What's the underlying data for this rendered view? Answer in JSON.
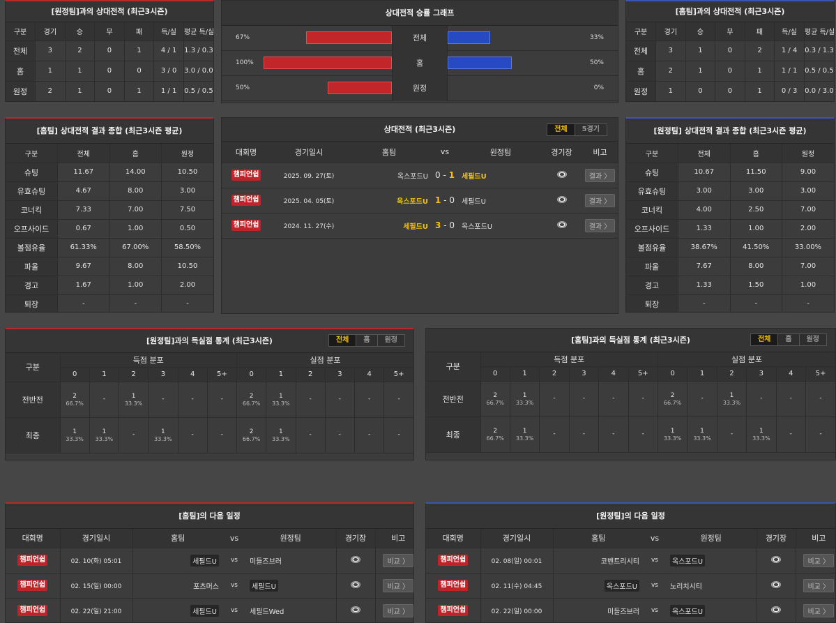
{
  "h2h_cols": [
    "구분",
    "경기",
    "승",
    "무",
    "패",
    "득/실",
    "평균 득/실"
  ],
  "h2h_away": {
    "title": "[원정팀]과의 상대전적 (최근3시즌)",
    "rows": [
      [
        "전체",
        "3",
        "2",
        "0",
        "1",
        "4 / 1",
        "1.3 / 0.3"
      ],
      [
        "홈",
        "1",
        "1",
        "0",
        "0",
        "3 / 0",
        "3.0 / 0.0"
      ],
      [
        "원정",
        "2",
        "1",
        "0",
        "1",
        "1 / 1",
        "0.5 / 0.5"
      ]
    ]
  },
  "h2h_home": {
    "title": "[홈팀]과의 상대전적 (최근3시즌)",
    "rows": [
      [
        "전체",
        "3",
        "1",
        "0",
        "2",
        "1 / 4",
        "0.3 / 1.3"
      ],
      [
        "홈",
        "2",
        "1",
        "0",
        "1",
        "1 / 1",
        "0.5 / 0.5"
      ],
      [
        "원정",
        "1",
        "0",
        "0",
        "1",
        "0 / 3",
        "0.0 / 3.0"
      ]
    ]
  },
  "graph": {
    "title": "상대전적 승률 그래프",
    "rows": [
      {
        "label": "전체",
        "left_text": "67%",
        "left": 67,
        "right_text": "33%",
        "right": 33
      },
      {
        "label": "홈",
        "left_text": "100%",
        "left": 100,
        "right_text": "50%",
        "right": 50
      },
      {
        "label": "원정",
        "left_text": "50%",
        "left": 50,
        "right_text": "0%",
        "right": 0
      }
    ],
    "red": "#c0262a",
    "blue": "#2849c4"
  },
  "summary_cols": [
    "구분",
    "전체",
    "홈",
    "원정"
  ],
  "summary_home": {
    "title": "[홈팀] 상대전적 결과 종합 (최근3시즌 평균)",
    "rows": [
      [
        "슈팅",
        "11.67",
        "14.00",
        "10.50"
      ],
      [
        "유효슈팅",
        "4.67",
        "8.00",
        "3.00"
      ],
      [
        "코너킥",
        "7.33",
        "7.00",
        "7.50"
      ],
      [
        "오프사이드",
        "0.67",
        "1.00",
        "0.50"
      ],
      [
        "볼점유율",
        "61.33%",
        "67.00%",
        "58.50%"
      ],
      [
        "파울",
        "9.67",
        "8.00",
        "10.50"
      ],
      [
        "경고",
        "1.67",
        "1.00",
        "2.00"
      ],
      [
        "퇴장",
        "-",
        "-",
        "-"
      ]
    ]
  },
  "summary_away": {
    "title": "[원정팀] 상대전적 결과 종합 (최근3시즌 평균)",
    "rows": [
      [
        "슈팅",
        "10.67",
        "11.50",
        "9.00"
      ],
      [
        "유효슈팅",
        "3.00",
        "3.00",
        "3.00"
      ],
      [
        "코너킥",
        "4.00",
        "2.50",
        "7.00"
      ],
      [
        "오프사이드",
        "1.33",
        "1.00",
        "2.00"
      ],
      [
        "볼점유율",
        "38.67%",
        "41.50%",
        "33.00%"
      ],
      [
        "파울",
        "7.67",
        "8.00",
        "7.00"
      ],
      [
        "경고",
        "1.33",
        "1.50",
        "1.00"
      ],
      [
        "퇴장",
        "-",
        "-",
        "-"
      ]
    ]
  },
  "matches": {
    "title": "상대전적 (최근3시즌)",
    "tabs": [
      "전체",
      "5경기"
    ],
    "cols": [
      "대회명",
      "경기일시",
      "홈팀",
      "vs",
      "원정팀",
      "경기장",
      "비고"
    ],
    "rows": [
      {
        "league": "챔피언쉽",
        "date": "2025. 09. 27(토)",
        "home": "옥스포드U",
        "hs": "0",
        "as": "1",
        "away": "세필드U",
        "winner": "away",
        "btn": "결과 〉"
      },
      {
        "league": "챔피언쉽",
        "date": "2025. 04. 05(토)",
        "home": "옥스포드U",
        "hs": "1",
        "as": "0",
        "away": "세필드U",
        "winner": "home",
        "btn": "결과 〉"
      },
      {
        "league": "챔피언쉽",
        "date": "2024. 11. 27(수)",
        "home": "세필드U",
        "hs": "3",
        "as": "0",
        "away": "옥스포드U",
        "winner": "home",
        "btn": "결과 〉"
      }
    ]
  },
  "goals_tabs": [
    "전체",
    "홈",
    "원정"
  ],
  "goals_heads": {
    "label": "구분",
    "scored": "득점 분포",
    "conceded": "실점 분포",
    "buckets": [
      "0",
      "1",
      "2",
      "3",
      "4",
      "5+"
    ]
  },
  "goals_away": {
    "title": "[원정팀]과의 득실점 통계 (최근3시즌)",
    "rows": [
      {
        "label": "전반전",
        "cells": [
          [
            "2",
            "66.7%"
          ],
          [
            "-",
            ""
          ],
          [
            "1",
            "33.3%"
          ],
          [
            "-",
            ""
          ],
          [
            "-",
            ""
          ],
          [
            "-",
            ""
          ],
          [
            "2",
            "66.7%"
          ],
          [
            "1",
            "33.3%"
          ],
          [
            "-",
            ""
          ],
          [
            "-",
            ""
          ],
          [
            "-",
            ""
          ],
          [
            "-",
            ""
          ]
        ]
      },
      {
        "label": "최종",
        "cells": [
          [
            "1",
            "33.3%"
          ],
          [
            "1",
            "33.3%"
          ],
          [
            "-",
            ""
          ],
          [
            "1",
            "33.3%"
          ],
          [
            "-",
            ""
          ],
          [
            "-",
            ""
          ],
          [
            "2",
            "66.7%"
          ],
          [
            "1",
            "33.3%"
          ],
          [
            "-",
            ""
          ],
          [
            "-",
            ""
          ],
          [
            "-",
            ""
          ],
          [
            "-",
            ""
          ]
        ]
      }
    ]
  },
  "goals_home": {
    "title": "[홈팀]과의 득실점 통계 (최근3시즌)",
    "rows": [
      {
        "label": "전반전",
        "cells": [
          [
            "2",
            "66.7%"
          ],
          [
            "1",
            "33.3%"
          ],
          [
            "-",
            ""
          ],
          [
            "-",
            ""
          ],
          [
            "-",
            ""
          ],
          [
            "-",
            ""
          ],
          [
            "2",
            "66.7%"
          ],
          [
            "-",
            ""
          ],
          [
            "1",
            "33.3%"
          ],
          [
            "-",
            ""
          ],
          [
            "-",
            ""
          ],
          [
            "-",
            ""
          ]
        ]
      },
      {
        "label": "최종",
        "cells": [
          [
            "2",
            "66.7%"
          ],
          [
            "1",
            "33.3%"
          ],
          [
            "-",
            ""
          ],
          [
            "-",
            ""
          ],
          [
            "-",
            ""
          ],
          [
            "-",
            ""
          ],
          [
            "1",
            "33.3%"
          ],
          [
            "1",
            "33.3%"
          ],
          [
            "-",
            ""
          ],
          [
            "1",
            "33.3%"
          ],
          [
            "-",
            ""
          ],
          [
            "-",
            ""
          ]
        ]
      }
    ]
  },
  "next_cols": [
    "대회명",
    "경기일시",
    "홈팀",
    "vs",
    "원정팀",
    "경기장",
    "비고"
  ],
  "next_home": {
    "title": "[홈팀]의 다음 일정",
    "rows": [
      {
        "league": "챔피언쉽",
        "date": "02. 10(화) 05:01",
        "home": "세필드U",
        "away": "미들즈브러",
        "boxed": "home",
        "btn": "비교 〉"
      },
      {
        "league": "챔피언쉽",
        "date": "02. 15(일) 00:00",
        "home": "포츠머스",
        "away": "세필드U",
        "boxed": "away",
        "btn": "비교 〉"
      },
      {
        "league": "챔피언쉽",
        "date": "02. 22(일) 21:00",
        "home": "세필드U",
        "away": "세필드Wed",
        "boxed": "home",
        "btn": "비교 〉"
      }
    ]
  },
  "next_away": {
    "title": "[원정팀]의 다음 일정",
    "rows": [
      {
        "league": "챔피언쉽",
        "date": "02. 08(일) 00:01",
        "home": "코벤트리시티",
        "away": "옥스포드U",
        "boxed": "away",
        "btn": "비교 〉"
      },
      {
        "league": "챔피언쉽",
        "date": "02. 11(수) 04:45",
        "home": "옥스포드U",
        "away": "노리치시티",
        "boxed": "home",
        "btn": "비교 〉"
      },
      {
        "league": "챔피언쉽",
        "date": "02. 22(일) 00:00",
        "home": "미들즈브러",
        "away": "옥스포드U",
        "boxed": "away",
        "btn": "비교 〉"
      }
    ]
  }
}
